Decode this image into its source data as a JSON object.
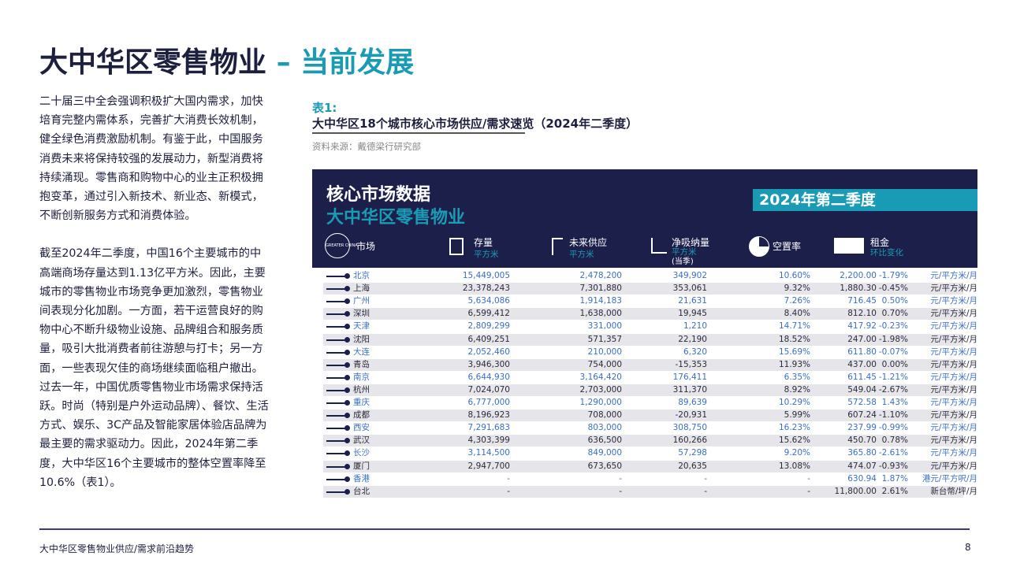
{
  "header": {
    "title_main": "大中华区零售物业",
    "title_accent": "– 当前发展"
  },
  "body": {
    "paragraphs": [
      "二十届三中全会强调积极扩大国内需求，加快培育完整内需体系，完善扩大消费长效机制，健全绿色消费激励机制。有鉴于此，中国服务消费未来将保持较强的发展动力，新型消费将持续涌现。零售商和购物中心的业主正积极拥抱变革，通过引入新技术、新业态、新模式，不断创新服务方式和消费体验。",
      "截至2024年二季度，中国16个主要城市的中高端商场存量达到1.13亿平方米。因此，主要城市的零售物业市场竞争更加激烈，零售物业间表现分化加剧。一方面，若干运营良好的购物中心不断升级物业设施、品牌组合和服务质量，吸引大批消费者前往游憩与打卡；另一方面，一些表现欠佳的商场继续面临租户撤出。过去一年，中国优质零售物业市场需求保持活跃。时尚（特别是户外运动品牌）、餐饮、生活方式、娱乐、3C产品及智能家居体验店品牌为最主要的需求驱动力。因此，2024年第二季度，大中华区16个主要城市的整体空置率降至10.6%（表1）。"
    ]
  },
  "table": {
    "label": "表1:",
    "caption": "大中华区18个城市核心市场供应/需求速览（2024年二季度）",
    "source": "资料来源：戴德梁行研究部",
    "banner": {
      "title": "核心市场数据",
      "subtitle": "大中华区零售物业",
      "period": "2024年第二季度",
      "logo": "GREATER CHINA"
    },
    "columns": {
      "market": "市场",
      "stock": "存量",
      "stock_unit": "平方米",
      "supply": "未来供应",
      "supply_unit": "平方米",
      "absorption": "净吸纳量",
      "absorption_unit": "平方米",
      "absorption_note": "(当季)",
      "vacancy": "空置率",
      "rent": "租金",
      "rent_note": "环比变化"
    },
    "rows": [
      [
        "北京",
        "15,449,005",
        "2,478,200",
        "349,902",
        "10.60%",
        "2,200.00",
        "-1.79%",
        "元/平方米/月"
      ],
      [
        "上海",
        "23,378,243",
        "7,301,880",
        "353,061",
        "9.32%",
        "1,880.30",
        "-0.45%",
        "元/平方米/月"
      ],
      [
        "广州",
        "5,634,086",
        "1,914,183",
        "21,631",
        "7.26%",
        "716.45",
        "0.50%",
        "元/平方米/月"
      ],
      [
        "深圳",
        "6,599,412",
        "1,638,000",
        "19,945",
        "8.40%",
        "812.10",
        "0.70%",
        "元/平方米/月"
      ],
      [
        "天津",
        "2,809,299",
        "331,000",
        "1,210",
        "14.71%",
        "417.92",
        "-0.23%",
        "元/平方米/月"
      ],
      [
        "沈阳",
        "6,409,251",
        "571,357",
        "22,190",
        "18.52%",
        "247.00",
        "-1.98%",
        "元/平方米/月"
      ],
      [
        "大连",
        "2,052,460",
        "210,000",
        "6,320",
        "15.69%",
        "611.80",
        "-0.07%",
        "元/平方米/月"
      ],
      [
        "青岛",
        "3,946,300",
        "754,000",
        "-15,353",
        "11.93%",
        "437.00",
        "0.00%",
        "元/平方米/月"
      ],
      [
        "南京",
        "6,644,930",
        "3,164,420",
        "176,411",
        "6.35%",
        "611.45",
        "-1.21%",
        "元/平方米/月"
      ],
      [
        "杭州",
        "7,024,070",
        "2,703,000",
        "311,370",
        "8.92%",
        "549.04",
        "-2.67%",
        "元/平方米/月"
      ],
      [
        "重庆",
        "6,777,000",
        "1,290,000",
        "89,639",
        "10.29%",
        "572.58",
        "1.43%",
        "元/平方米/月"
      ],
      [
        "成都",
        "8,196,923",
        "708,000",
        "-20,931",
        "5.99%",
        "607.24",
        "-1.10%",
        "元/平方米/月"
      ],
      [
        "西安",
        "7,291,683",
        "803,000",
        "308,750",
        "16.23%",
        "237.99",
        "-0.99%",
        "元/平方米/月"
      ],
      [
        "武汉",
        "4,303,399",
        "636,500",
        "160,266",
        "15.62%",
        "450.70",
        "0.78%",
        "元/平方米/月"
      ],
      [
        "长沙",
        "3,114,500",
        "849,000",
        "57,298",
        "9.20%",
        "365.80",
        "-2.61%",
        "元/平方米/月"
      ],
      [
        "厦门",
        "2,947,700",
        "673,650",
        "20,635",
        "13.08%",
        "474.07",
        "-0.93%",
        "元/平方米/月"
      ],
      [
        "香港",
        "-",
        "-",
        "-",
        "-",
        "630.94",
        "1.87%",
        "港元/平方呎/月"
      ],
      [
        "台北",
        "-",
        "-",
        "-",
        "-",
        "11,800.00",
        "2.61%",
        "新台幣/坪/月"
      ]
    ]
  },
  "footer": {
    "text": "大中华区零售物业供应/需求前沿趋势",
    "page": "8"
  }
}
